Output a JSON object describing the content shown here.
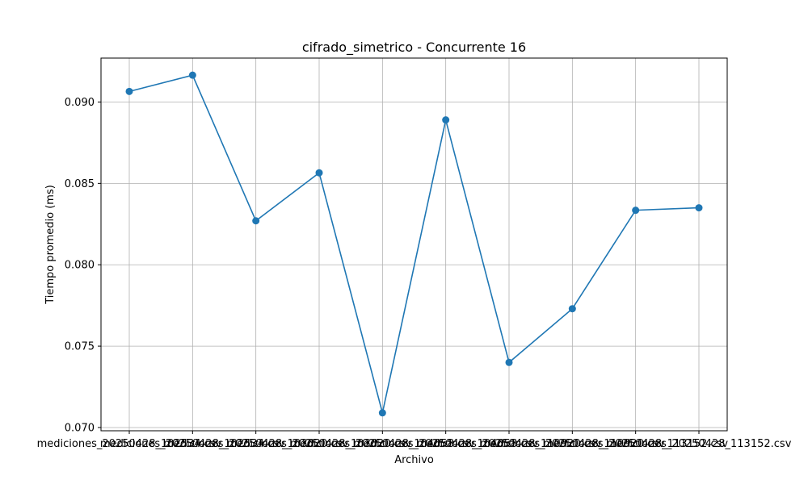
{
  "chart_data": {
    "type": "line",
    "title": "cifrado_simetrico - Concurrente 16",
    "xlabel": "Archivo",
    "ylabel": "Tiempo promedio (ms)",
    "categories": [
      "mediciones_20250428_102534.csv",
      "mediciones_20250428_102534.csv",
      "mediciones_20250428_103020.csv",
      "mediciones_20250428_103020.csv",
      "mediciones_20250428_104058.csv",
      "mediciones_20250428_104058.csv",
      "mediciones_20250428_110920.csv",
      "mediciones_20250428_110920.csv",
      "mediciones_20250428_113152.csv",
      "mediciones_20250428_113152.csv"
    ],
    "series": [
      {
        "values": [
          0.09065,
          0.09165,
          0.0827,
          0.08565,
          0.0709,
          0.0889,
          0.074,
          0.0773,
          0.08335,
          0.0835
        ]
      }
    ],
    "ylim": [
      0.0698,
      0.0927
    ],
    "yticks": [
      "0.070",
      "0.075",
      "0.080",
      "0.085",
      "0.090"
    ],
    "ytick_values": [
      0.07,
      0.075,
      0.08,
      0.085,
      0.09
    ],
    "grid": true,
    "color": "#1f77b4"
  }
}
